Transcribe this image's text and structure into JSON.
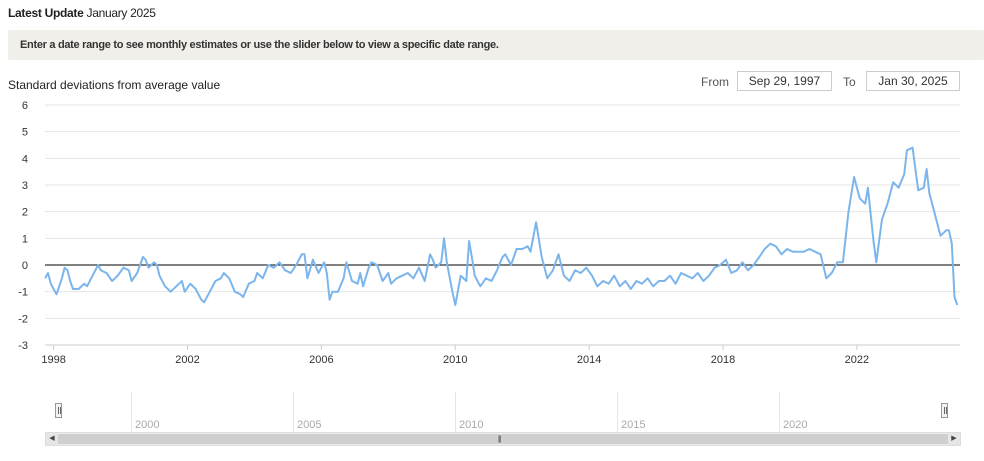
{
  "header": {
    "latest_label": "Latest Update",
    "latest_value": "January 2025"
  },
  "banner": {
    "text": "Enter a date range to see monthly estimates or use the slider below to view a specific date range."
  },
  "range": {
    "from_label": "From",
    "from_value": "Sep 29, 1997",
    "to_label": "To",
    "to_value": "Jan 30, 2025"
  },
  "navigator": {
    "labels": [
      "2000",
      "2005",
      "2010",
      "2015",
      "2020"
    ]
  },
  "colors": {
    "series": "#7cb5ec",
    "zero_line": "#000000",
    "grid": "#e6e6e6",
    "axis_text": "#333333"
  },
  "icons": {
    "left_handle": "slider-handle-icon",
    "right_handle": "slider-handle-icon",
    "scroll_left": "arrow-left-icon",
    "scroll_right": "arrow-right-icon",
    "scroll_grip": "grip-icon"
  },
  "chart_data": {
    "type": "line",
    "ylabel": "Standard deviations from average value",
    "xlabel": "",
    "ylim": [
      -3,
      6
    ],
    "yticks": [
      -3,
      -2,
      -1,
      0,
      1,
      2,
      3,
      4,
      5,
      6
    ],
    "xlim": [
      "1997-09-29",
      "2025-01-30"
    ],
    "xticks": [
      "1998",
      "2002",
      "2006",
      "2010",
      "2014",
      "2018",
      "2022"
    ],
    "grid": true,
    "legend": "none",
    "series": [
      {
        "points": [
          [
            "1997-10",
            -0.5
          ],
          [
            "1997-11",
            -0.3
          ],
          [
            "1997-12",
            -0.7
          ],
          [
            "1998-01",
            -0.9
          ],
          [
            "1998-02",
            -1.1
          ],
          [
            "1998-04",
            -0.5
          ],
          [
            "1998-05",
            -0.1
          ],
          [
            "1998-06",
            -0.2
          ],
          [
            "1998-07",
            -0.6
          ],
          [
            "1998-08",
            -0.9
          ],
          [
            "1998-10",
            -0.9
          ],
          [
            "1998-12",
            -0.7
          ],
          [
            "1999-01",
            -0.8
          ],
          [
            "1999-03",
            -0.4
          ],
          [
            "1999-05",
            0.0
          ],
          [
            "1999-06",
            -0.2
          ],
          [
            "1999-08",
            -0.3
          ],
          [
            "1999-10",
            -0.6
          ],
          [
            "1999-12",
            -0.4
          ],
          [
            "2000-02",
            -0.1
          ],
          [
            "2000-04",
            -0.2
          ],
          [
            "2000-05",
            -0.6
          ],
          [
            "2000-07",
            -0.3
          ],
          [
            "2000-09",
            0.3
          ],
          [
            "2000-10",
            0.2
          ],
          [
            "2000-11",
            -0.1
          ],
          [
            "2001-01",
            0.1
          ],
          [
            "2001-02",
            0.0
          ],
          [
            "2001-03",
            -0.4
          ],
          [
            "2001-05",
            -0.8
          ],
          [
            "2001-07",
            -1.0
          ],
          [
            "2001-09",
            -0.8
          ],
          [
            "2001-11",
            -0.6
          ],
          [
            "2001-12",
            -1.0
          ],
          [
            "2002-02",
            -0.7
          ],
          [
            "2002-04",
            -0.9
          ],
          [
            "2002-06",
            -1.3
          ],
          [
            "2002-07",
            -1.4
          ],
          [
            "2002-09",
            -1.0
          ],
          [
            "2002-11",
            -0.6
          ],
          [
            "2003-01",
            -0.5
          ],
          [
            "2003-02",
            -0.3
          ],
          [
            "2003-04",
            -0.5
          ],
          [
            "2003-06",
            -1.0
          ],
          [
            "2003-08",
            -1.1
          ],
          [
            "2003-09",
            -1.2
          ],
          [
            "2003-11",
            -0.7
          ],
          [
            "2004-01",
            -0.6
          ],
          [
            "2004-02",
            -0.3
          ],
          [
            "2004-04",
            -0.5
          ],
          [
            "2004-06",
            0.0
          ],
          [
            "2004-08",
            -0.1
          ],
          [
            "2004-10",
            0.1
          ],
          [
            "2004-12",
            -0.2
          ],
          [
            "2005-02",
            -0.3
          ],
          [
            "2005-04",
            0.0
          ],
          [
            "2005-06",
            0.4
          ],
          [
            "2005-07",
            0.4
          ],
          [
            "2005-08",
            -0.5
          ],
          [
            "2005-10",
            0.2
          ],
          [
            "2005-12",
            -0.3
          ],
          [
            "2006-02",
            0.1
          ],
          [
            "2006-03",
            -0.3
          ],
          [
            "2006-04",
            -1.3
          ],
          [
            "2006-05",
            -1.0
          ],
          [
            "2006-07",
            -1.0
          ],
          [
            "2006-09",
            -0.5
          ],
          [
            "2006-10",
            0.1
          ],
          [
            "2006-12",
            -0.6
          ],
          [
            "2007-02",
            -0.7
          ],
          [
            "2007-03",
            -0.3
          ],
          [
            "2007-04",
            -0.8
          ],
          [
            "2007-06",
            -0.1
          ],
          [
            "2007-07",
            0.1
          ],
          [
            "2007-09",
            0.0
          ],
          [
            "2007-11",
            -0.6
          ],
          [
            "2008-01",
            -0.3
          ],
          [
            "2008-02",
            -0.7
          ],
          [
            "2008-04",
            -0.5
          ],
          [
            "2008-06",
            -0.4
          ],
          [
            "2008-08",
            -0.3
          ],
          [
            "2008-10",
            -0.5
          ],
          [
            "2008-12",
            -0.1
          ],
          [
            "2009-02",
            -0.6
          ],
          [
            "2009-04",
            0.4
          ],
          [
            "2009-05",
            0.2
          ],
          [
            "2009-06",
            -0.1
          ],
          [
            "2009-08",
            0.1
          ],
          [
            "2009-09",
            1.0
          ],
          [
            "2009-10",
            0.1
          ],
          [
            "2009-12",
            -1.0
          ],
          [
            "2010-01",
            -1.5
          ],
          [
            "2010-03",
            -0.4
          ],
          [
            "2010-05",
            -0.6
          ],
          [
            "2010-06",
            0.9
          ],
          [
            "2010-07",
            0.3
          ],
          [
            "2010-08",
            -0.4
          ],
          [
            "2010-10",
            -0.8
          ],
          [
            "2010-12",
            -0.5
          ],
          [
            "2011-02",
            -0.6
          ],
          [
            "2011-04",
            -0.2
          ],
          [
            "2011-06",
            0.3
          ],
          [
            "2011-07",
            0.4
          ],
          [
            "2011-09",
            0.0
          ],
          [
            "2011-11",
            0.6
          ],
          [
            "2012-01",
            0.6
          ],
          [
            "2012-03",
            0.7
          ],
          [
            "2012-04",
            0.5
          ],
          [
            "2012-06",
            1.6
          ],
          [
            "2012-08",
            0.3
          ],
          [
            "2012-10",
            -0.5
          ],
          [
            "2012-12",
            -0.2
          ],
          [
            "2013-02",
            0.4
          ],
          [
            "2013-04",
            -0.4
          ],
          [
            "2013-06",
            -0.6
          ],
          [
            "2013-08",
            -0.2
          ],
          [
            "2013-10",
            -0.3
          ],
          [
            "2013-12",
            -0.1
          ],
          [
            "2014-02",
            -0.4
          ],
          [
            "2014-04",
            -0.8
          ],
          [
            "2014-06",
            -0.6
          ],
          [
            "2014-08",
            -0.7
          ],
          [
            "2014-10",
            -0.4
          ],
          [
            "2014-12",
            -0.8
          ],
          [
            "2015-02",
            -0.6
          ],
          [
            "2015-04",
            -0.9
          ],
          [
            "2015-06",
            -0.6
          ],
          [
            "2015-08",
            -0.7
          ],
          [
            "2015-10",
            -0.5
          ],
          [
            "2015-12",
            -0.8
          ],
          [
            "2016-02",
            -0.6
          ],
          [
            "2016-04",
            -0.6
          ],
          [
            "2016-06",
            -0.4
          ],
          [
            "2016-08",
            -0.7
          ],
          [
            "2016-10",
            -0.3
          ],
          [
            "2016-12",
            -0.4
          ],
          [
            "2017-02",
            -0.5
          ],
          [
            "2017-04",
            -0.3
          ],
          [
            "2017-06",
            -0.6
          ],
          [
            "2017-08",
            -0.4
          ],
          [
            "2017-10",
            -0.1
          ],
          [
            "2017-12",
            0.0
          ],
          [
            "2018-02",
            0.2
          ],
          [
            "2018-04",
            -0.3
          ],
          [
            "2018-06",
            -0.2
          ],
          [
            "2018-08",
            0.1
          ],
          [
            "2018-10",
            -0.2
          ],
          [
            "2018-12",
            0.0
          ],
          [
            "2019-02",
            0.3
          ],
          [
            "2019-04",
            0.6
          ],
          [
            "2019-06",
            0.8
          ],
          [
            "2019-08",
            0.7
          ],
          [
            "2019-10",
            0.4
          ],
          [
            "2019-12",
            0.6
          ],
          [
            "2020-02",
            0.5
          ],
          [
            "2020-04",
            0.5
          ],
          [
            "2020-06",
            0.5
          ],
          [
            "2020-08",
            0.6
          ],
          [
            "2020-10",
            0.5
          ],
          [
            "2020-12",
            0.4
          ],
          [
            "2021-02",
            -0.5
          ],
          [
            "2021-04",
            -0.3
          ],
          [
            "2021-06",
            0.1
          ],
          [
            "2021-08",
            0.1
          ],
          [
            "2021-10",
            2.0
          ],
          [
            "2021-12",
            3.3
          ],
          [
            "2022-02",
            2.5
          ],
          [
            "2022-04",
            2.3
          ],
          [
            "2022-05",
            2.9
          ],
          [
            "2022-07",
            0.9
          ],
          [
            "2022-08",
            0.1
          ],
          [
            "2022-10",
            1.7
          ],
          [
            "2022-12",
            2.3
          ],
          [
            "2023-02",
            3.1
          ],
          [
            "2023-04",
            2.9
          ],
          [
            "2023-06",
            3.4
          ],
          [
            "2023-07",
            4.3
          ],
          [
            "2023-09",
            4.4
          ],
          [
            "2023-11",
            2.8
          ],
          [
            "2024-01",
            2.9
          ],
          [
            "2024-02",
            3.6
          ],
          [
            "2024-03",
            2.7
          ],
          [
            "2024-05",
            1.9
          ],
          [
            "2024-07",
            1.1
          ],
          [
            "2024-09",
            1.3
          ],
          [
            "2024-10",
            1.3
          ],
          [
            "2024-11",
            0.8
          ],
          [
            "2024-12",
            -1.2
          ],
          [
            "2025-01",
            -1.5
          ]
        ]
      }
    ]
  }
}
